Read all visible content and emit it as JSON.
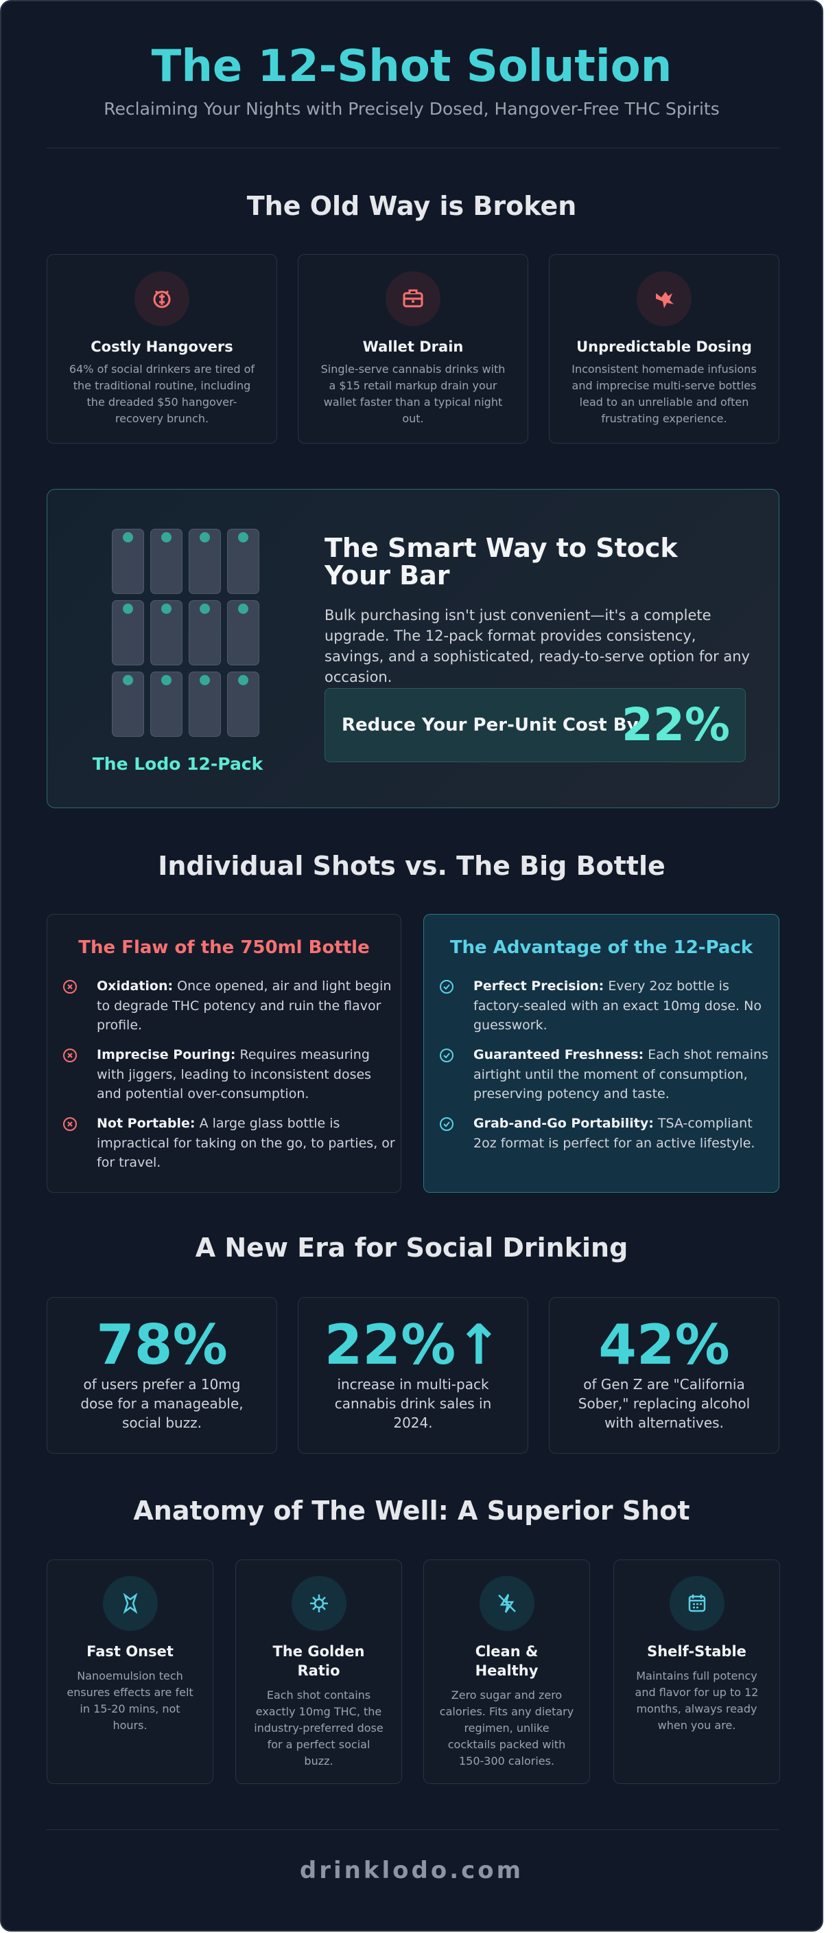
{
  "header": {
    "title": "The 12-Shot Solution",
    "subtitle": "Reclaiming Your Nights with Precisely Dosed, Hangover-Free THC Spirits"
  },
  "old_way": {
    "title": "The Old Way is Broken",
    "cards": [
      {
        "title": "Costly Hangovers",
        "text": "64% of social drinkers are tired of the traditional routine, including the dreaded $50 hangover-recovery brunch."
      },
      {
        "title": "Wallet Drain",
        "text": "Single-serve cannabis drinks with a $15 retail markup drain your wallet faster than a typical night out."
      },
      {
        "title": "Unpredictable Dosing",
        "text": "Inconsistent homemade infusions and imprecise multi-serve bottles lead to an unreliable and often frustrating experience."
      }
    ]
  },
  "smart_way": {
    "pack_label": "The Lodo 12-Pack",
    "title": "The Smart Way to Stock Your Bar",
    "text": "Bulk purchasing isn't just convenient—it's a complete upgrade. The 12-pack format provides consistency, savings, and a sophisticated, ready-to-serve option for any occasion.",
    "callout": {
      "label": "Reduce Your Per-Unit Cost By",
      "value": "22%"
    }
  },
  "comparison": {
    "title": "Individual Shots vs. The Big Bottle",
    "bottle": {
      "title": "The Flaw of the 750ml Bottle",
      "items": [
        {
          "lead": "Oxidation:",
          "text": "Once opened, air and light begin to degrade THC potency and ruin the flavor profile."
        },
        {
          "lead": "Imprecise Pouring:",
          "text": "Requires measuring with jiggers, leading to inconsistent doses and potential over-consumption."
        },
        {
          "lead": "Not Portable:",
          "text": "A large glass bottle is impractical for taking on the go, to parties, or for travel."
        }
      ]
    },
    "pack": {
      "title": "The Advantage of the 12-Pack",
      "items": [
        {
          "lead": "Perfect Precision:",
          "text": "Every 2oz bottle is factory-sealed with an exact 10mg dose. No guesswork."
        },
        {
          "lead": "Guaranteed Freshness:",
          "text": "Each shot remains airtight until the moment of consumption, preserving potency and taste."
        },
        {
          "lead": "Grab-and-Go Portability:",
          "text": "TSA-compliant 2oz format is perfect for an active lifestyle."
        }
      ]
    }
  },
  "social": {
    "title": "A New Era for Social Drinking",
    "stats": [
      {
        "value": "78%",
        "text": "of users prefer a 10mg dose for a manageable, social buzz."
      },
      {
        "value": "22%↑",
        "text": "increase in multi-pack cannabis drink sales in 2024."
      },
      {
        "value": "42%",
        "text": "of Gen Z are \"California Sober,\" replacing alcohol with alternatives."
      }
    ]
  },
  "anatomy": {
    "title": "Anatomy of The Well: A Superior Shot",
    "cards": [
      {
        "title": "Fast Onset",
        "text": "Nanoemulsion tech ensures effects are felt in 15-20 mins, not hours."
      },
      {
        "title": "The Golden Ratio",
        "text": "Each shot contains exactly 10mg THC, the industry-preferred dose for a perfect social buzz."
      },
      {
        "title": "Clean & Healthy",
        "text": "Zero sugar and zero calories. Fits any dietary regimen, unlike cocktails packed with 150-300 calories."
      },
      {
        "title": "Shelf-Stable",
        "text": "Maintains full potency and flavor for up to 12 months, always ready when you are."
      }
    ]
  },
  "footer": {
    "site": "drinklodo.com"
  }
}
